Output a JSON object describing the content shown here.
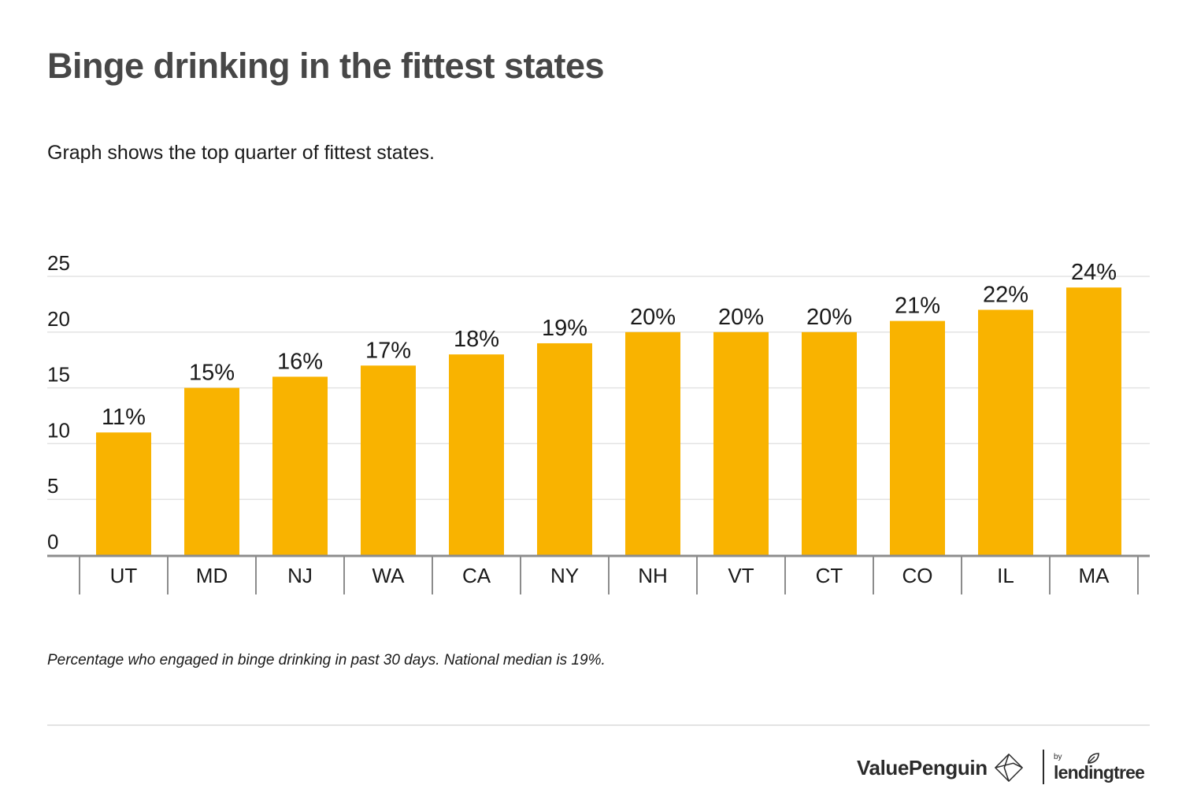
{
  "title": "Binge drinking in the fittest states",
  "subtitle": "Graph shows the top quarter of fittest states.",
  "footnote": "Percentage who engaged in binge drinking in past 30 days. National median is 19%.",
  "brand": {
    "valuepenguin": "ValuePenguin",
    "by": "by",
    "lendingtree": "lendingtree",
    "icons": [
      "valuepenguin-logo-icon",
      "lendingtree-leaf-icon"
    ]
  },
  "colors": {
    "bar": "#F9B300",
    "title": "#474747",
    "text": "#1a1a1a",
    "grid": "#e3e3e3",
    "axis": "#8c8c8c"
  },
  "chart_data": {
    "type": "bar",
    "title": "",
    "xlabel": "",
    "ylabel": "",
    "categories": [
      "UT",
      "MD",
      "NJ",
      "WA",
      "CA",
      "NY",
      "NH",
      "VT",
      "CT",
      "CO",
      "IL",
      "MA"
    ],
    "values": [
      11,
      15,
      16,
      17,
      18,
      19,
      20,
      20,
      20,
      21,
      22,
      24
    ],
    "value_labels": [
      "11%",
      "15%",
      "16%",
      "17%",
      "18%",
      "19%",
      "20%",
      "20%",
      "20%",
      "21%",
      "22%",
      "24%"
    ],
    "yticks": [
      0,
      5,
      10,
      15,
      20,
      25
    ],
    "ylim": [
      0,
      25
    ],
    "grid": true,
    "legend": "none"
  }
}
